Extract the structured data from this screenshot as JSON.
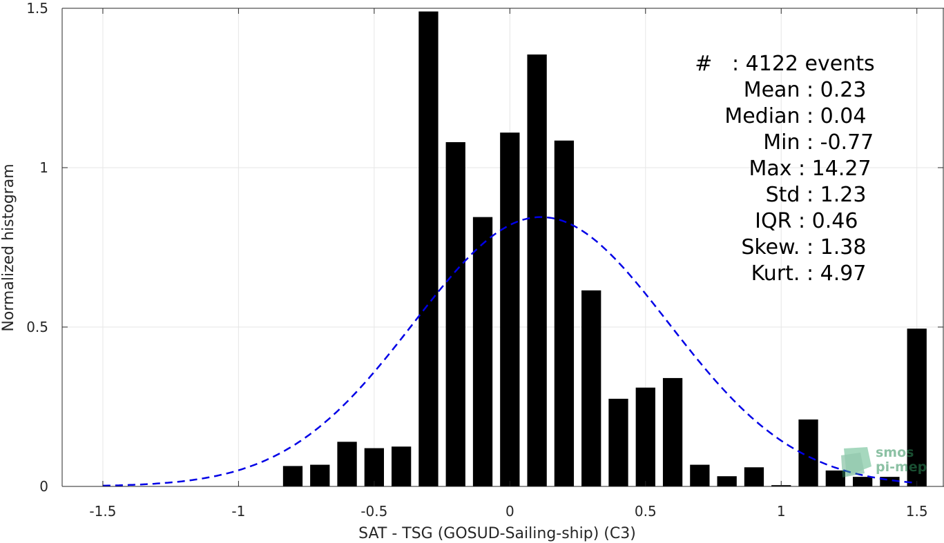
{
  "chart_data": {
    "type": "bar",
    "xlabel": "SAT - TSG (GOSUD-Sailing-ship) (C3)",
    "ylabel": "Normalized histogram",
    "xlim": [
      -1.65,
      1.6
    ],
    "ylim": [
      0,
      1.5
    ],
    "xticks": [
      -1.5,
      -1,
      -0.5,
      0,
      0.5,
      1,
      1.5
    ],
    "xtick_labels": [
      "-1.5",
      "-1",
      "-0.5",
      "0",
      "0.5",
      "1",
      "1.5"
    ],
    "yticks": [
      0,
      0.5,
      1,
      1.5
    ],
    "ytick_labels": [
      "0",
      "0.5",
      "1",
      "1.5"
    ],
    "grid": true,
    "bar_color": "#000000",
    "bars": {
      "x": [
        -1.5,
        -1.4,
        -1.3,
        -1.2,
        -1.1,
        -1.0,
        -0.9,
        -0.8,
        -0.7,
        -0.6,
        -0.5,
        -0.4,
        -0.3,
        -0.2,
        -0.1,
        0.0,
        0.1,
        0.2,
        0.3,
        0.4,
        0.5,
        0.6,
        0.7,
        0.8,
        0.9,
        1.0,
        1.1,
        1.2,
        1.3,
        1.4,
        1.5
      ],
      "values": [
        0,
        0,
        0,
        0,
        0,
        0,
        0,
        0.064,
        0.068,
        0.14,
        0.12,
        0.125,
        1.49,
        1.08,
        0.845,
        1.11,
        1.355,
        1.085,
        0.615,
        0.275,
        0.31,
        0.34,
        0.068,
        0.032,
        0.06,
        0.004,
        0.21,
        0.05,
        0.03,
        0.03,
        0.495
      ]
    },
    "fit_curve": {
      "style": "dashed",
      "color": "#0000e6",
      "mean": 0.115,
      "sigma": 0.47,
      "peak": 0.845,
      "x_range": [
        -1.5,
        1.5
      ]
    },
    "stats": [
      {
        "key": "#  ",
        "value": ": 4122 events"
      },
      {
        "key": "Mean",
        "value": ": 0.23"
      },
      {
        "key": "Median",
        "value": ": 0.04"
      },
      {
        "key": "Min",
        "value": ": -0.77"
      },
      {
        "key": "Max",
        "value": ": 14.27"
      },
      {
        "key": "Std",
        "value": ": 1.23"
      },
      {
        "key": "IQR",
        "value": ": 0.46"
      },
      {
        "key": "Skew.",
        "value": ": 1.38"
      },
      {
        "key": "Kurt.",
        "value": ": 4.97"
      }
    ]
  },
  "logo": {
    "line1": "smos",
    "line2": "pi-mep",
    "icon": "smos-pimep-logo-icon",
    "color": "#2f8f5a"
  }
}
